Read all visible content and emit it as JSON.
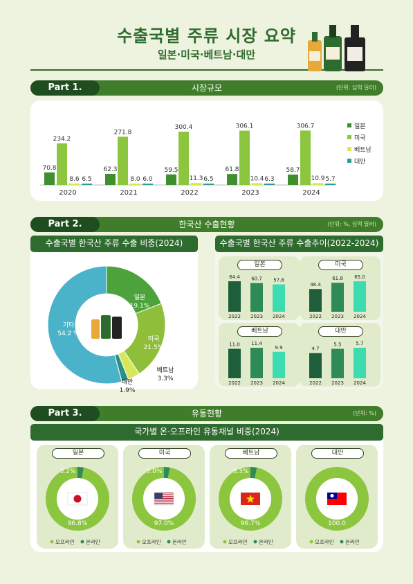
{
  "header": {
    "title": "수출국별 주류 시장 요약",
    "subtitle": "일본·미국·베트남·대만"
  },
  "part1": {
    "label": "Part 1.",
    "title": "시장규모",
    "unit": "(단위: 십억 달러)",
    "chart_data": {
      "type": "bar",
      "categories": [
        "2020",
        "2021",
        "2022",
        "2023",
        "2024"
      ],
      "series": [
        {
          "name": "일본",
          "color": "#3f8f2e",
          "values": [
            70.8,
            62.3,
            59.5,
            61.8,
            58.7
          ]
        },
        {
          "name": "미국",
          "color": "#8cc63f",
          "values": [
            234.2,
            271.8,
            300.4,
            306.1,
            306.7
          ]
        },
        {
          "name": "베트남",
          "color": "#d8e94a",
          "values": [
            8.6,
            8.0,
            11.3,
            10.4,
            10.9
          ]
        },
        {
          "name": "대만",
          "color": "#2a9d8f",
          "values": [
            6.5,
            6.0,
            6.5,
            6.3,
            5.7
          ]
        }
      ],
      "legend_position": "right"
    }
  },
  "part2": {
    "label": "Part 2.",
    "title": "한국산 수출현황",
    "unit": "(단위: %, 십억 달러)",
    "share": {
      "heading": "수출국별 한국산 주류 수출 비중(2024)",
      "chart_data": {
        "type": "pie",
        "labels": [
          "일본",
          "미국",
          "베트남",
          "대만",
          "기타"
        ],
        "values": [
          19.1,
          21.5,
          3.3,
          1.9,
          54.2
        ],
        "display": [
          "19.1%",
          "21.5%",
          "3.3%",
          "1.9%",
          "54.2 %"
        ],
        "colors": [
          "#4ca33c",
          "#8fbf3a",
          "#d6e85a",
          "#2a8f86",
          "#4bb3c9"
        ]
      }
    },
    "trend": {
      "heading": "수출국별 한국산 주류 수출추이(2022-2024)",
      "chart_data": [
        {
          "type": "bar",
          "title": "일본",
          "categories": [
            "2022",
            "2023",
            "2024"
          ],
          "values": [
            64.4,
            60.7,
            57.8
          ]
        },
        {
          "type": "bar",
          "title": "미국",
          "categories": [
            "2022",
            "2023",
            "2024"
          ],
          "values": [
            48.4,
            61.8,
            65.0
          ]
        },
        {
          "type": "bar",
          "title": "베트남",
          "categories": [
            "2022",
            "2023",
            "2024"
          ],
          "values": [
            11.0,
            11.4,
            9.9
          ]
        },
        {
          "type": "bar",
          "title": "대만",
          "categories": [
            "2022",
            "2023",
            "2024"
          ],
          "values": [
            4.7,
            5.5,
            5.7
          ]
        }
      ]
    }
  },
  "part3": {
    "label": "Part 3.",
    "title": "유통현황",
    "unit": "(단위: %)",
    "heading": "국가별 온·오프라인 유통채널 비중(2024)",
    "legend": {
      "offline": "오프라인",
      "online": "온라인"
    },
    "colors": {
      "offline": "#8cc63f",
      "online": "#2e8b57"
    },
    "chart_data": [
      {
        "type": "pie",
        "title": "일본",
        "offline": 96.8,
        "online": 3.2,
        "offline_label": "96.8%",
        "online_label": "3.2%",
        "flag": "japan-flag"
      },
      {
        "type": "pie",
        "title": "미국",
        "offline": 97.0,
        "online": 3.0,
        "offline_label": "97.0%",
        "online_label": "3.0%",
        "flag": "usa-flag"
      },
      {
        "type": "pie",
        "title": "베트남",
        "offline": 96.7,
        "online": 3.3,
        "offline_label": "96.7%",
        "online_label": "3.3%",
        "flag": "vietnam-flag"
      },
      {
        "type": "pie",
        "title": "대만",
        "offline": 100.0,
        "online": 0,
        "offline_label": "100.0",
        "online_label": "",
        "flag": "taiwan-flag"
      }
    ]
  }
}
